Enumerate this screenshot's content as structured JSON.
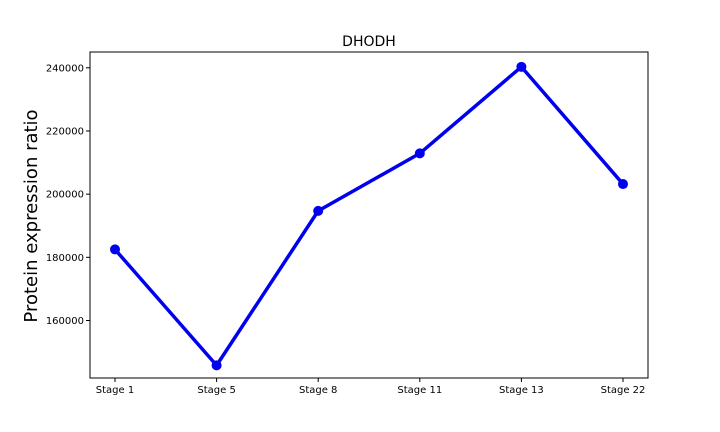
{
  "chart_data": {
    "type": "line",
    "title": "DHODH",
    "xlabel": "",
    "ylabel": "Protein expression ratio",
    "categories": [
      "Stage 1",
      "Stage 5",
      "Stage 8",
      "Stage 11",
      "Stage 13",
      "Stage 22"
    ],
    "series": [
      {
        "values": [
          182500,
          145800,
          194700,
          212900,
          240300,
          203200
        ],
        "color": "#0000ee"
      }
    ],
    "ylim": [
      141800,
      245000
    ],
    "yticks": [
      160000,
      180000,
      200000,
      220000,
      240000
    ],
    "ytick_labels": [
      "160000",
      "180000",
      "200000",
      "220000",
      "240000"
    ],
    "grid": false,
    "legend": "none"
  }
}
